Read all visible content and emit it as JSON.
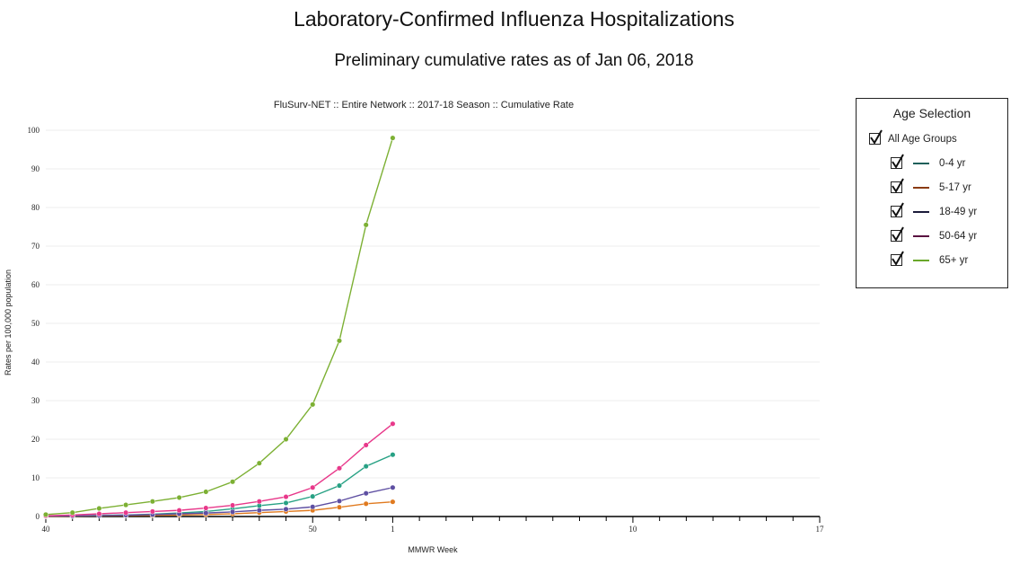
{
  "page": {
    "title": "Laboratory-Confirmed Influenza Hospitalizations",
    "subtitle": "Preliminary cumulative rates as of Jan 06, 2018"
  },
  "legend": {
    "title": "Age Selection",
    "all_label": "All Age Groups",
    "items": [
      {
        "label": "0-4 yr",
        "color": "#1f5f5a"
      },
      {
        "label": "5-17 yr",
        "color": "#8a3b12"
      },
      {
        "label": "18-49 yr",
        "color": "#1b1b3a"
      },
      {
        "label": "50-64 yr",
        "color": "#5a1040"
      },
      {
        "label": "65+ yr",
        "color": "#6aa82a"
      }
    ]
  },
  "chart_data": {
    "type": "line",
    "title": "FluSurv-NET :: Entire Network :: 2017-18 Season :: Cumulative Rate",
    "xlabel": "MMWR Week",
    "ylabel": "Rates per 100,000 population",
    "ylim": [
      0,
      100
    ],
    "y_ticks": [
      0,
      10,
      20,
      30,
      40,
      50,
      60,
      70,
      80,
      90,
      100
    ],
    "x_tick_labels": [
      "40",
      "50",
      "1",
      "10",
      "17"
    ],
    "x_weeks": [
      "40",
      "41",
      "42",
      "43",
      "44",
      "45",
      "46",
      "47",
      "48",
      "49",
      "50",
      "51",
      "52",
      "1"
    ],
    "x_axis_weeks": [
      "40",
      "41",
      "42",
      "43",
      "44",
      "45",
      "46",
      "47",
      "48",
      "49",
      "50",
      "51",
      "52",
      "1",
      "2",
      "3",
      "4",
      "5",
      "6",
      "7",
      "8",
      "9",
      "10",
      "11",
      "12",
      "13",
      "14",
      "15",
      "16",
      "17"
    ],
    "grid": true,
    "legend_position": "right",
    "series": [
      {
        "name": "0-4 yr",
        "color": "#27a184",
        "values": [
          0.1,
          0.2,
          0.3,
          0.4,
          0.6,
          0.9,
          1.3,
          2.0,
          2.8,
          3.5,
          5.2,
          8.0,
          13.0,
          16.0
        ]
      },
      {
        "name": "5-17 yr",
        "color": "#e07a1f",
        "values": [
          0.05,
          0.1,
          0.2,
          0.25,
          0.3,
          0.4,
          0.5,
          0.7,
          1.0,
          1.3,
          1.6,
          2.4,
          3.3,
          3.8
        ]
      },
      {
        "name": "18-49 yr",
        "color": "#5e4fa2",
        "values": [
          0.1,
          0.15,
          0.25,
          0.35,
          0.5,
          0.7,
          0.9,
          1.2,
          1.6,
          1.9,
          2.5,
          4.0,
          6.0,
          7.5
        ]
      },
      {
        "name": "50-64 yr",
        "color": "#e8388a",
        "values": [
          0.2,
          0.4,
          0.7,
          1.0,
          1.3,
          1.6,
          2.2,
          2.9,
          3.9,
          5.1,
          7.5,
          12.5,
          18.5,
          24.0
        ]
      },
      {
        "name": "65+ yr",
        "color": "#7cb033",
        "values": [
          0.5,
          1.0,
          2.1,
          3.0,
          3.9,
          4.9,
          6.4,
          9.0,
          13.8,
          20.0,
          29.0,
          45.5,
          75.5,
          98.0
        ]
      }
    ]
  }
}
